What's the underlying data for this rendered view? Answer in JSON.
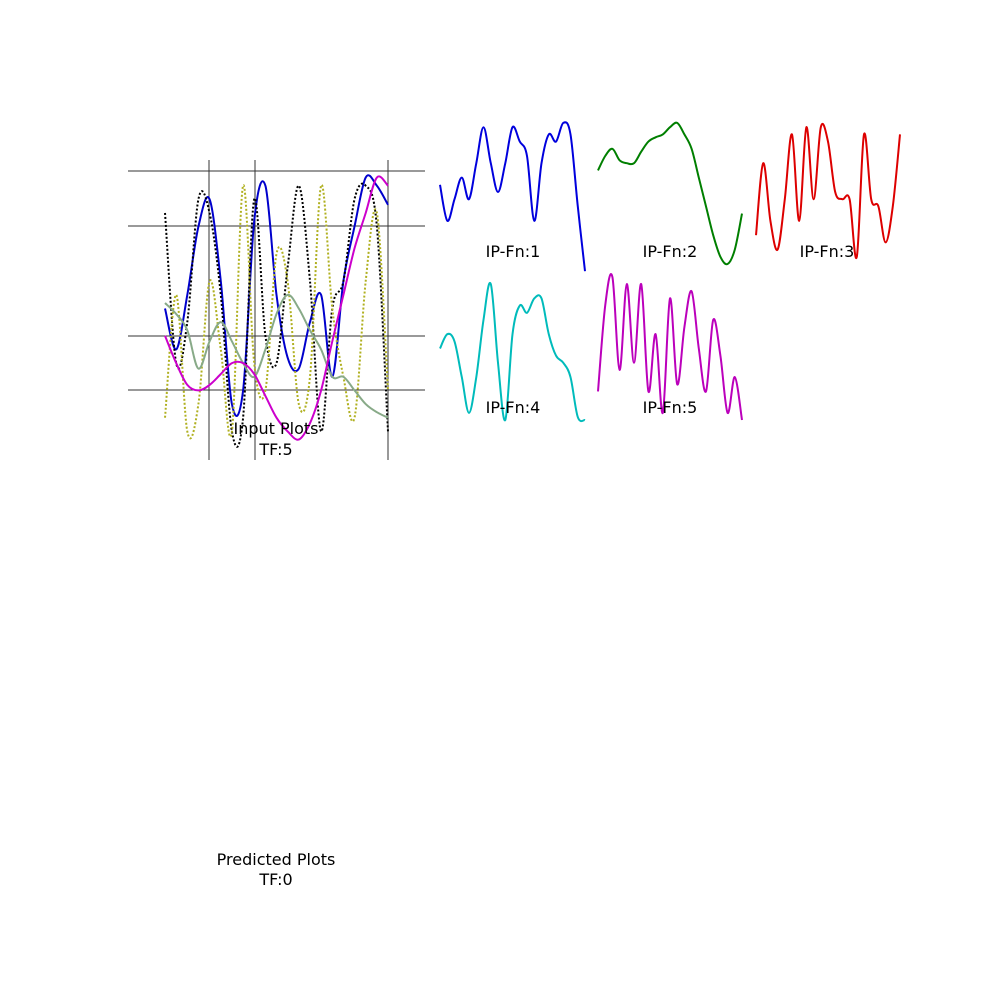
{
  "composite": {
    "caption_line1": "Input Plots",
    "caption_line2": "TF:5",
    "series": [
      {
        "color": "#0000cc",
        "style": "solid",
        "x": [
          0,
          0.5,
          1,
          1.5,
          2,
          2.5,
          3,
          3.5,
          4,
          4.5,
          5,
          5.5,
          6,
          6.5,
          7,
          7.5,
          8,
          8.5,
          9,
          9.5,
          10
        ],
        "y": [
          0.5,
          0.35,
          0.55,
          0.8,
          0.9,
          0.6,
          0.15,
          0.2,
          0.82,
          0.95,
          0.55,
          0.32,
          0.28,
          0.45,
          0.55,
          0.25,
          0.6,
          0.8,
          0.98,
          0.95,
          0.88
        ]
      },
      {
        "color": "#000000",
        "style": "dotted",
        "x": [
          0,
          0.5,
          1,
          1.5,
          2,
          2.5,
          3,
          3.5,
          4,
          4.5,
          5,
          5.5,
          6,
          6.5,
          7,
          7.5,
          8,
          8.5,
          9,
          9.5,
          10
        ],
        "y": [
          0.85,
          0.3,
          0.45,
          0.9,
          0.85,
          0.55,
          0.05,
          0.1,
          0.9,
          0.4,
          0.3,
          0.65,
          0.95,
          0.6,
          0.05,
          0.5,
          0.6,
          0.9,
          0.95,
          0.8,
          0.05
        ]
      },
      {
        "color": "#b0b020",
        "style": "dotted",
        "x": [
          0,
          0.5,
          1,
          1.5,
          2,
          2.5,
          3,
          3.5,
          4,
          4.5,
          5,
          5.5,
          6,
          6.5,
          7,
          7.5,
          8,
          8.5,
          9,
          9.5,
          10
        ],
        "y": [
          0.1,
          0.55,
          0.05,
          0.15,
          0.6,
          0.35,
          0.05,
          0.95,
          0.3,
          0.2,
          0.7,
          0.6,
          0.15,
          0.25,
          0.95,
          0.5,
          0.25,
          0.1,
          0.6,
          0.85,
          0.2
        ]
      },
      {
        "color": "#88aa88",
        "style": "solid",
        "x": [
          0,
          0.5,
          1,
          1.5,
          2,
          2.5,
          3,
          3.5,
          4,
          4.5,
          5,
          5.5,
          6,
          6.5,
          7,
          7.5,
          8,
          8.5,
          9,
          9.5,
          10
        ],
        "y": [
          0.52,
          0.48,
          0.42,
          0.28,
          0.38,
          0.45,
          0.38,
          0.3,
          0.25,
          0.35,
          0.48,
          0.55,
          0.5,
          0.42,
          0.35,
          0.25,
          0.25,
          0.2,
          0.15,
          0.12,
          0.1
        ]
      },
      {
        "color": "#cc00cc",
        "style": "solid",
        "x": [
          0,
          0.5,
          1,
          1.5,
          2,
          2.5,
          3,
          3.5,
          4,
          4.5,
          5,
          5.5,
          6,
          6.5,
          7,
          7.5,
          8,
          8.5,
          9,
          9.5,
          10
        ],
        "y": [
          0.4,
          0.3,
          0.22,
          0.2,
          0.22,
          0.26,
          0.3,
          0.3,
          0.26,
          0.18,
          0.1,
          0.05,
          0.02,
          0.08,
          0.2,
          0.38,
          0.55,
          0.72,
          0.85,
          0.98,
          0.95
        ]
      }
    ]
  },
  "small_multiples": [
    {
      "label": "IP-Fn:1",
      "color": "#0000dd",
      "y": [
        0.55,
        0.3,
        0.45,
        0.6,
        0.45,
        0.7,
        0.95,
        0.7,
        0.5,
        0.7,
        0.95,
        0.85,
        0.75,
        0.3,
        0.7,
        0.9,
        0.85,
        0.98,
        0.9,
        0.4,
        -0.05
      ]
    },
    {
      "label": "IP-Fn:2",
      "color": "#007f00",
      "y": [
        0.65,
        0.75,
        0.8,
        0.72,
        0.7,
        0.7,
        0.78,
        0.85,
        0.88,
        0.9,
        0.95,
        0.98,
        0.9,
        0.8,
        0.6,
        0.4,
        0.2,
        0.05,
        0.0,
        0.1,
        0.35
      ]
    },
    {
      "label": "IP-Fn:3",
      "color": "#dd0000",
      "y": [
        0.2,
        0.7,
        0.3,
        0.1,
        0.45,
        0.9,
        0.3,
        0.95,
        0.45,
        0.95,
        0.85,
        0.5,
        0.45,
        0.45,
        0.05,
        0.9,
        0.45,
        0.4,
        0.15,
        0.4,
        0.9
      ]
    },
    {
      "label": "IP-Fn:4",
      "color": "#00bbbb",
      "y": [
        0.5,
        0.6,
        0.55,
        0.3,
        0.05,
        0.3,
        0.7,
        0.95,
        0.4,
        0.0,
        0.6,
        0.8,
        0.75,
        0.85,
        0.85,
        0.6,
        0.45,
        0.4,
        0.3,
        0.02,
        0.0
      ]
    },
    {
      "label": "IP-Fn:5",
      "color": "#bb00bb",
      "y": [
        0.2,
        0.8,
        1.0,
        0.35,
        0.95,
        0.4,
        0.95,
        0.2,
        0.6,
        0.05,
        0.85,
        0.25,
        0.65,
        0.9,
        0.5,
        0.2,
        0.7,
        0.45,
        0.05,
        0.3,
        0.0
      ]
    }
  ],
  "predicted": {
    "caption_line1": "Predicted Plots",
    "caption_line2": "TF:0"
  }
}
